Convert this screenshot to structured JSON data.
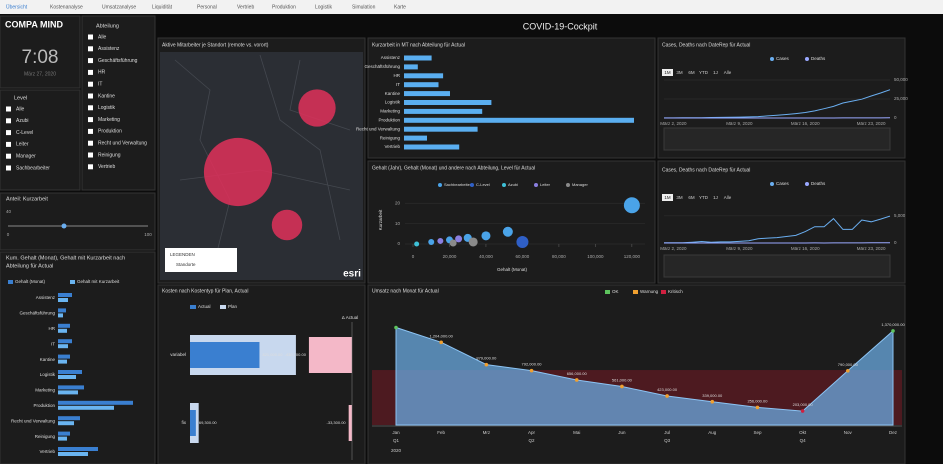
{
  "nav": [
    "Übersicht",
    "Kostenanalyse",
    "Umsatzanalyse",
    "Liquidität",
    "Personal",
    "Vertrieb",
    "Produktion",
    "Logistik",
    "Simulation",
    "Karte"
  ],
  "logo": "COMPA MIND",
  "clock": {
    "time": "7:08",
    "date": "März 27, 2020"
  },
  "dashboard_title": "COVID-19-Cockpit",
  "filters": {
    "abteilung": {
      "title": "Abteilung",
      "items": [
        "Alle",
        "Assistenz",
        "Geschäftsführung",
        "HR",
        "IT",
        "Kantine",
        "Logistik",
        "Marketing",
        "Produktion",
        "Recht und Verwaltung",
        "Reinigung",
        "Vertrieb"
      ]
    },
    "level": {
      "title": "Level",
      "items": [
        "Alle",
        "Azubi",
        "C-Level",
        "Leiter",
        "Manager",
        "Sachbearbeiter"
      ]
    }
  },
  "slider": {
    "title": "Anteil: Kurzarbeit",
    "value": 40,
    "min": 0,
    "max": 100
  },
  "map": {
    "title": "Aktive Mitarbeiter je Standort (remote vs. vorort)",
    "legend_title": "LEGENDEN",
    "legend_item": "Standorte",
    "brand": "esri",
    "bubbles": [
      60,
      18,
      12
    ]
  },
  "kurzarbeit": {
    "title": "Kurzarbeit in MT nach Abteilung für Actual",
    "color": "#5aaef0",
    "categories": [
      "Assistenz",
      "Geschäftsführung",
      "HR",
      "IT",
      "Kantine",
      "Logistik",
      "Marketing",
      "Produktion",
      "Recht und Verwaltung",
      "Reinigung",
      "Vertrieb"
    ],
    "values": [
      12,
      6,
      17,
      15,
      20,
      38,
      34,
      100,
      32,
      10,
      24
    ],
    "xlim": [
      0,
      100
    ]
  },
  "cases1": {
    "title": "Cases, Deaths nach DateRep für Actual",
    "range_buttons": [
      "1M",
      "3M",
      "6M",
      "YTD",
      "1J",
      "Alle"
    ],
    "x": [
      null,
      "März 2, 2020",
      null,
      null,
      null,
      null,
      null,
      null,
      "März 9, 2020",
      null,
      null,
      null,
      null,
      null,
      null,
      "März 16, 2020",
      null,
      null,
      null,
      null,
      null,
      null,
      "März 23, 2020",
      null,
      null
    ],
    "series": [
      {
        "name": "Cases",
        "color": "#6aaef0",
        "values": [
          130,
          160,
          200,
          260,
          400,
          680,
          800,
          1000,
          1200,
          1500,
          1900,
          2700,
          3600,
          4600,
          5800,
          7200,
          9300,
          12300,
          15300,
          19800,
          22300,
          24800,
          29000,
          32900,
          37300
        ]
      },
      {
        "name": "Deaths",
        "color": "#9aa8ff",
        "values": [
          0,
          0,
          0,
          0,
          0,
          0,
          0,
          0,
          2,
          2,
          3,
          6,
          8,
          9,
          11,
          13,
          24,
          28,
          44,
          67,
          84,
          94,
          123,
          157,
          206
        ]
      }
    ],
    "ylim": [
      0,
      50000
    ],
    "yticks": [
      0,
      {
        "value": 25000,
        "label": "25,000"
      },
      {
        "value": 50000,
        "label": "50,000"
      }
    ]
  },
  "cases2": {
    "title": "Cases, Deaths nach DateRep für Actual",
    "range_buttons": [
      "1M",
      "3M",
      "6M",
      "YTD",
      "1J",
      "Alle"
    ],
    "x": [
      null,
      "März 2, 2020",
      null,
      null,
      null,
      null,
      null,
      null,
      "März 9, 2020",
      null,
      null,
      null,
      null,
      null,
      null,
      "März 16, 2020",
      null,
      null,
      null,
      null,
      null,
      null,
      "März 23, 2020",
      null,
      null
    ],
    "series": [
      {
        "name": "Cases",
        "color": "#6aaef0",
        "values": [
          30,
          40,
          60,
          140,
          280,
          120,
          200,
          200,
          300,
          400,
          800,
          900,
          1000,
          1200,
          1400,
          2100,
          3000,
          3000,
          4500,
          2500,
          2500,
          4236,
          3900,
          4400,
          4954
        ]
      },
      {
        "name": "Deaths",
        "color": "#9aa8ff",
        "values": [
          0,
          0,
          0,
          0,
          0,
          0,
          0,
          0,
          2,
          0,
          1,
          3,
          2,
          1,
          2,
          2,
          11,
          4,
          16,
          23,
          17,
          10,
          29,
          34,
          49
        ]
      }
    ],
    "ylim": [
      0,
      7000
    ],
    "yticks": [
      0,
      {
        "value": 5000,
        "label": "5,000"
      }
    ]
  },
  "scatter": {
    "title": "Gehalt (Jahr), Gehalt (Monat) und andere nach Abteilung, Level für Actual",
    "x_label": "Gehalt (Monat)",
    "y_label": "Kurzarbeit",
    "series": [
      {
        "name": "Sachbearbeiter",
        "color": "#4aa3e8",
        "x": [
          10000,
          20000,
          30000,
          40000,
          52000,
          120000
        ],
        "y": [
          1,
          2,
          3,
          4,
          6,
          19
        ],
        "size": [
          3,
          3.5,
          4,
          4.5,
          5,
          8
        ]
      },
      {
        "name": "C-Level",
        "color": "#2f5fc6",
        "x": [
          60000
        ],
        "y": [
          1
        ],
        "size": [
          6
        ]
      },
      {
        "name": "Azubi",
        "color": "#3ec0d6",
        "x": [
          2000
        ],
        "y": [
          0
        ],
        "size": [
          2.5
        ]
      },
      {
        "name": "Leiter",
        "color": "#8a7fe0",
        "x": [
          15000,
          25000
        ],
        "y": [
          1.5,
          2.5
        ],
        "size": [
          3,
          3.5
        ]
      },
      {
        "name": "Manager",
        "color": "#8a8a8a",
        "x": [
          22000,
          33000
        ],
        "y": [
          0.5,
          1
        ],
        "size": [
          3.5,
          4.5
        ]
      }
    ],
    "xlim": [
      0,
      125000
    ],
    "xticks": [
      0,
      {
        "value": 20000,
        "label": "20,000"
      },
      {
        "value": 40000,
        "label": "40,000"
      },
      {
        "value": 60000,
        "label": "60,000"
      },
      {
        "value": 80000,
        "label": "80,000"
      },
      {
        "value": 100000,
        "label": "100,000"
      },
      {
        "value": 120000,
        "label": "120,000"
      }
    ],
    "ylim": [
      0,
      25
    ],
    "yticks": [
      0,
      10,
      20
    ]
  },
  "kum": {
    "title": [
      "Kum. Gehalt (Monat), Gehalt mit Kurzarbeit nach",
      "Abteilung für Actual"
    ],
    "categories": [
      "Assistenz",
      "Geschäftsführung",
      "HR",
      "IT",
      "Kantine",
      "Logistik",
      "Marketing",
      "Produktion",
      "Recht und Verwaltung",
      "Reinigung",
      "Vertrieb"
    ],
    "series": [
      {
        "name": "Gehalt (Monat)",
        "color": "#3a7fd0",
        "values": [
          14000,
          8000,
          12000,
          14000,
          12000,
          24000,
          26000,
          75000,
          22000,
          12000,
          40000
        ]
      },
      {
        "name": "Gehalt mit Kurzarbeit",
        "color": "#6ab4f0",
        "values": [
          10000,
          5000,
          9000,
          10000,
          9000,
          18000,
          20000,
          56000,
          16000,
          9000,
          30000
        ]
      }
    ],
    "xlim": [
      0,
      90000
    ]
  },
  "kosten": {
    "title": "Kosten nach Kostentyp für Plan, Actual",
    "categories": [
      "variabel",
      "fix"
    ],
    "series": [
      {
        "name": "Actual",
        "color": "#3a7fd0",
        "values": [
          821000,
          69300
        ],
        "value_labels": [
          "821,000.00",
          "69,300.00"
        ]
      },
      {
        "name": "Plan",
        "color": "#c8d8ee",
        "values": [
          1251700,
          102600
        ]
      }
    ],
    "xlim": [
      0,
      1300000
    ],
    "delta": {
      "title": "Δ Actual",
      "color": "#f4b8c8",
      "values": [
        -430700,
        -33300
      ],
      "value_labels": [
        "-430,700.00",
        "-33,300.00"
      ],
      "xlim": [
        -500000,
        0
      ]
    }
  },
  "umsatz": {
    "title": "Umsatz nach Monat für Actual",
    "legend": [
      {
        "name": "OK",
        "color": "#5ec45e"
      },
      {
        "name": "Warnung",
        "color": "#f0a030"
      },
      {
        "name": "Kritisch",
        "color": "#d02040"
      }
    ],
    "categories": [
      "Jan",
      "Feb",
      "Mrz",
      "Apr",
      "Mai",
      "Jun",
      "Jul",
      "Aug",
      "Sep",
      "Okt",
      "Nov",
      "Dez"
    ],
    "values": [
      1420000,
      1204000,
      879000,
      792000,
      656000,
      561000,
      423000,
      339000,
      256000,
      203000,
      790000,
      1370000
    ],
    "value_labels": [
      null,
      "1,204,000.00",
      "879,000.00",
      "792,000.00",
      "656,000.00",
      "561,000.00",
      "423,000.00",
      "339,000.00",
      "256,000.00",
      "203,000.00",
      "790,000.00",
      "1,370,000.00"
    ],
    "point_colors": [
      "#5ec45e",
      "#f0a030",
      "#f0a030",
      "#f0a030",
      "#f0a030",
      "#f0a030",
      "#f0a030",
      "#f0a030",
      "#f0a030",
      "#d02040",
      "#f0a030",
      "#5ec45e"
    ],
    "color": "#6aa9e0",
    "critical_below": 800000,
    "quarters": [
      "Q1",
      "Q2",
      "Q3",
      "Q4"
    ],
    "year": "2020",
    "ylim": [
      0,
      1500000
    ]
  }
}
